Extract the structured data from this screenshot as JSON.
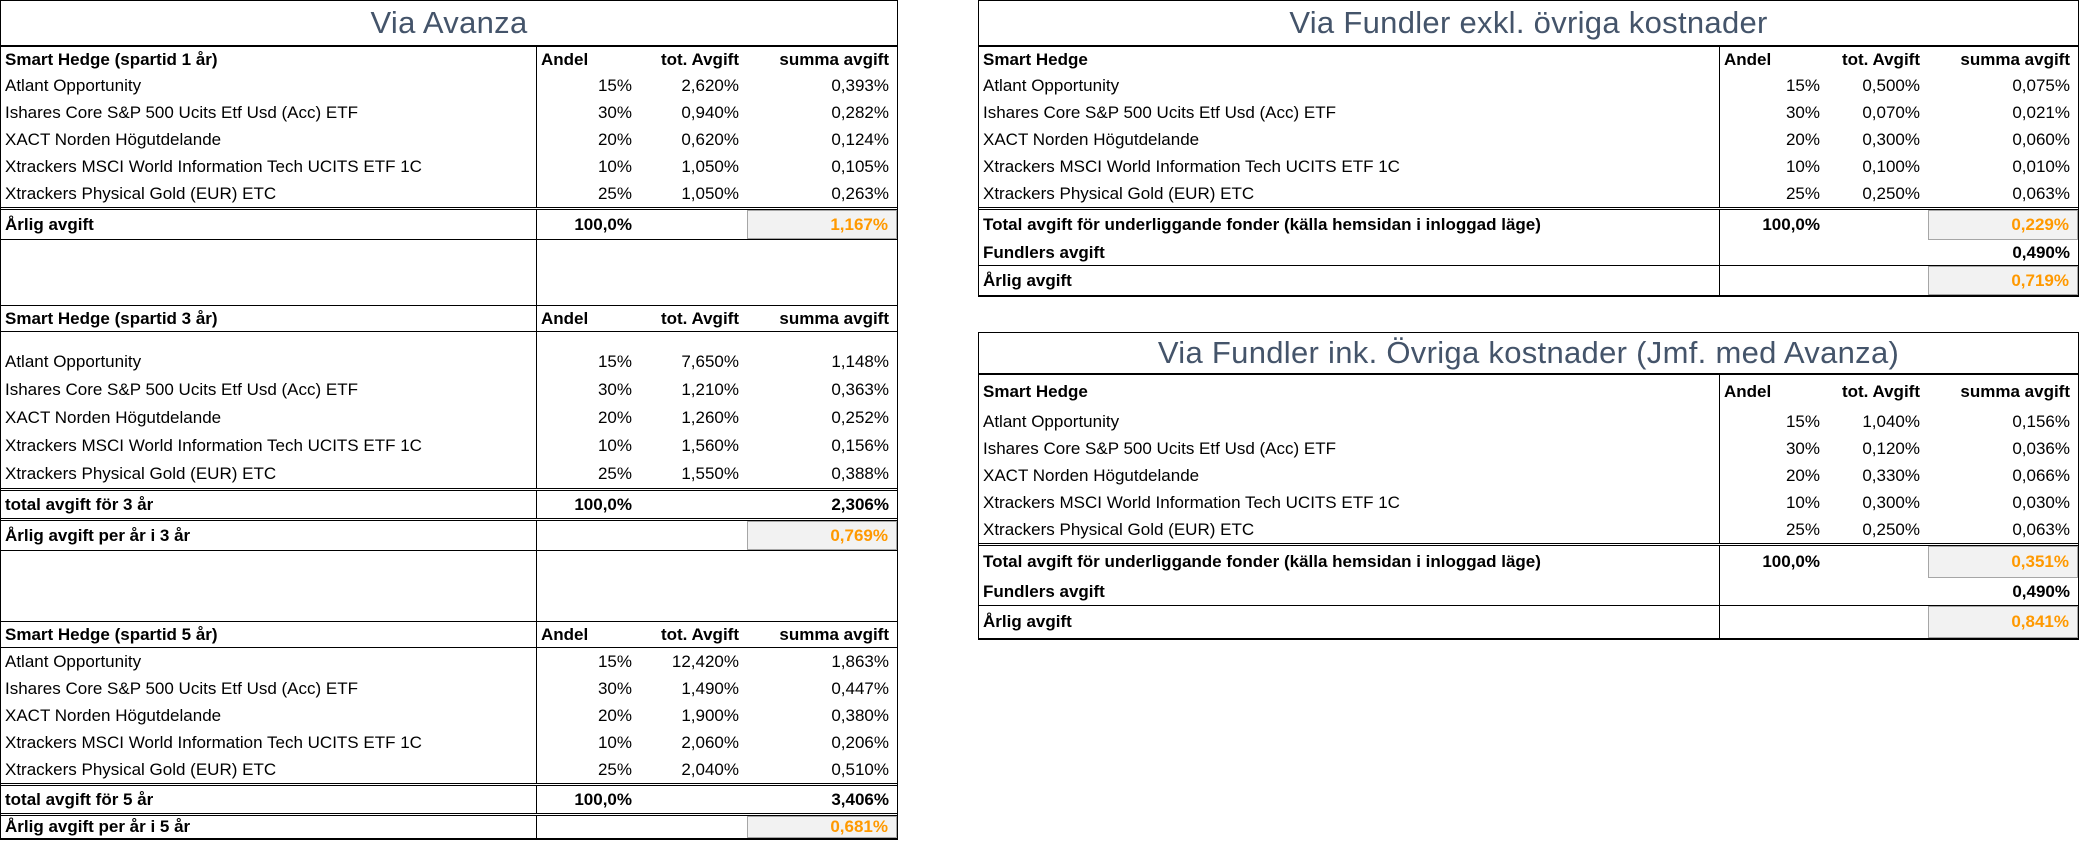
{
  "colors": {
    "accent_orange": "#FF9900",
    "title_text": "#44546A",
    "shaded_cell_bg": "#F2F2F2",
    "shaded_cell_border": "#A6A6A6",
    "table_border": "#000000"
  },
  "columns": {
    "andel": "Andel",
    "tot": "tot. Avgift",
    "summa": "summa avgift"
  },
  "avanza": {
    "title": "Via Avanza",
    "sections": [
      {
        "header": "Smart Hedge (spartid 1 år)",
        "rows": [
          {
            "name": "Atlant Opportunity",
            "andel": "15%",
            "tot": "2,620%",
            "summa": "0,393%"
          },
          {
            "name": "Ishares Core S&P 500 Ucits Etf Usd (Acc) ETF",
            "andel": "30%",
            "tot": "0,940%",
            "summa": "0,282%"
          },
          {
            "name": "XACT Norden Högutdelande",
            "andel": "20%",
            "tot": "0,620%",
            "summa": "0,124%"
          },
          {
            "name": "Xtrackers MSCI World Information Tech UCITS ETF 1C",
            "andel": "10%",
            "tot": "1,050%",
            "summa": "0,105%"
          },
          {
            "name": "Xtrackers Physical Gold (EUR) ETC",
            "andel": "25%",
            "tot": "1,050%",
            "summa": "0,263%"
          }
        ],
        "totals": [
          {
            "label": "Årlig avgift",
            "andel": "100,0%",
            "summa": "1,167%",
            "highlight": true
          }
        ]
      },
      {
        "header": "Smart Hedge (spartid 3 år)",
        "rows": [
          {
            "name": "Atlant Opportunity",
            "andel": "15%",
            "tot": "7,650%",
            "summa": "1,148%"
          },
          {
            "name": "Ishares Core S&P 500 Ucits Etf Usd (Acc) ETF",
            "andel": "30%",
            "tot": "1,210%",
            "summa": "0,363%"
          },
          {
            "name": "XACT Norden Högutdelande",
            "andel": "20%",
            "tot": "1,260%",
            "summa": "0,252%"
          },
          {
            "name": "Xtrackers MSCI World Information Tech UCITS ETF 1C",
            "andel": "10%",
            "tot": "1,560%",
            "summa": "0,156%"
          },
          {
            "name": "Xtrackers Physical Gold (EUR) ETC",
            "andel": "25%",
            "tot": "1,550%",
            "summa": "0,388%"
          }
        ],
        "totals": [
          {
            "label": "total avgift för 3 år",
            "andel": "100,0%",
            "summa": "2,306%",
            "highlight": false
          },
          {
            "label": "Årlig avgift per år i 3 år",
            "andel": "",
            "summa": "0,769%",
            "highlight": true
          }
        ]
      },
      {
        "header": "Smart Hedge (spartid 5 år)",
        "rows": [
          {
            "name": "Atlant Opportunity",
            "andel": "15%",
            "tot": "12,420%",
            "summa": "1,863%"
          },
          {
            "name": "Ishares Core S&P 500 Ucits Etf Usd (Acc) ETF",
            "andel": "30%",
            "tot": "1,490%",
            "summa": "0,447%"
          },
          {
            "name": "XACT Norden Högutdelande",
            "andel": "20%",
            "tot": "1,900%",
            "summa": "0,380%"
          },
          {
            "name": "Xtrackers MSCI World Information Tech UCITS ETF 1C",
            "andel": "10%",
            "tot": "2,060%",
            "summa": "0,206%"
          },
          {
            "name": "Xtrackers Physical Gold (EUR) ETC",
            "andel": "25%",
            "tot": "2,040%",
            "summa": "0,510%"
          }
        ],
        "totals": [
          {
            "label": "total avgift för 5 år",
            "andel": "100,0%",
            "summa": "3,406%",
            "highlight": false
          },
          {
            "label": "Årlig avgift per år i 5 år",
            "andel": "",
            "summa": "0,681%",
            "highlight": true
          }
        ]
      }
    ]
  },
  "fundler_exkl": {
    "title": "Via Fundler exkl. övriga kostnader",
    "header": "Smart Hedge",
    "rows": [
      {
        "name": "Atlant Opportunity",
        "andel": "15%",
        "tot": "0,500%",
        "summa": "0,075%"
      },
      {
        "name": "Ishares Core S&P 500 Ucits Etf Usd (Acc) ETF",
        "andel": "30%",
        "tot": "0,070%",
        "summa": "0,021%"
      },
      {
        "name": "XACT Norden Högutdelande",
        "andel": "20%",
        "tot": "0,300%",
        "summa": "0,060%"
      },
      {
        "name": "Xtrackers MSCI World Information Tech UCITS ETF 1C",
        "andel": "10%",
        "tot": "0,100%",
        "summa": "0,010%"
      },
      {
        "name": "Xtrackers Physical Gold (EUR) ETC",
        "andel": "25%",
        "tot": "0,250%",
        "summa": "0,063%"
      }
    ],
    "totals": [
      {
        "label": "Total avgift för underliggande fonder (källa hemsidan i inloggad läge)",
        "andel": "100,0%",
        "summa": "0,229%",
        "highlight": true
      },
      {
        "label": "Fundlers avgift",
        "andel": "",
        "summa": "0,490%",
        "highlight": false
      },
      {
        "label": "Årlig avgift",
        "andel": "",
        "summa": "0,719%",
        "highlight": true
      }
    ]
  },
  "fundler_inkl": {
    "title": "Via Fundler ink. Övriga kostnader (Jmf. med Avanza)",
    "header": "Smart Hedge",
    "rows": [
      {
        "name": "Atlant Opportunity",
        "andel": "15%",
        "tot": "1,040%",
        "summa": "0,156%"
      },
      {
        "name": "Ishares Core S&P 500 Ucits Etf Usd (Acc) ETF",
        "andel": "30%",
        "tot": "0,120%",
        "summa": "0,036%"
      },
      {
        "name": "XACT Norden Högutdelande",
        "andel": "20%",
        "tot": "0,330%",
        "summa": "0,066%"
      },
      {
        "name": "Xtrackers MSCI World Information Tech UCITS ETF 1C",
        "andel": "10%",
        "tot": "0,300%",
        "summa": "0,030%"
      },
      {
        "name": "Xtrackers Physical Gold (EUR) ETC",
        "andel": "25%",
        "tot": "0,250%",
        "summa": "0,063%"
      }
    ],
    "totals": [
      {
        "label": "Total avgift för underliggande fonder (källa hemsidan i inloggad läge)",
        "andel": "100,0%",
        "summa": "0,351%",
        "highlight": true
      },
      {
        "label": "Fundlers avgift",
        "andel": "",
        "summa": "0,490%",
        "highlight": false
      },
      {
        "label": "Årlig avgift",
        "andel": "",
        "summa": "0,841%",
        "highlight": true
      }
    ]
  }
}
